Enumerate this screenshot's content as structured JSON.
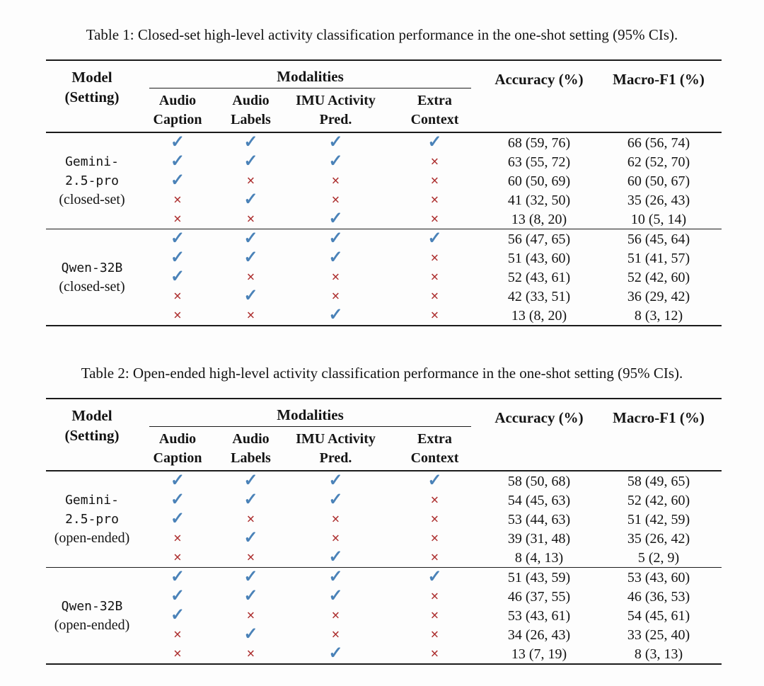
{
  "colors": {
    "background": "#fdfdfd",
    "text": "#141414",
    "rule_black": "#1b1b1b",
    "check_blue": "#4a82b8",
    "cross_red": "#ad3030"
  },
  "glyphs": {
    "check": "✓",
    "cross": "×"
  },
  "tables": [
    {
      "caption": "Table 1: Closed-set high-level activity classification performance in the one-shot setting (95% CIs).",
      "header": {
        "model_line1": "Model",
        "model_line2": "(Setting)",
        "modalities_label": "Modalities",
        "modality_columns": [
          {
            "line1": "Audio",
            "line2": "Caption"
          },
          {
            "line1": "Audio",
            "line2": "Labels"
          },
          {
            "line1": "IMU Activity",
            "line2": "Pred."
          },
          {
            "line1": "Extra",
            "line2": "Context"
          }
        ],
        "accuracy_label": "Accuracy (%)",
        "macro_f1_label": "Macro-F1 (%)"
      },
      "groups": [
        {
          "model_lines": [
            "Gemini-",
            "2.5-pro"
          ],
          "setting_line": "(closed-set)",
          "rows": [
            {
              "audio_caption": true,
              "audio_labels": true,
              "imu_activity_pred": true,
              "extra_context": true,
              "accuracy": "68 (59, 76)",
              "macro_f1": "66 (56, 74)"
            },
            {
              "audio_caption": true,
              "audio_labels": true,
              "imu_activity_pred": true,
              "extra_context": false,
              "accuracy": "63 (55, 72)",
              "macro_f1": "62 (52, 70)"
            },
            {
              "audio_caption": true,
              "audio_labels": false,
              "imu_activity_pred": false,
              "extra_context": false,
              "accuracy": "60 (50, 69)",
              "macro_f1": "60 (50, 67)"
            },
            {
              "audio_caption": false,
              "audio_labels": true,
              "imu_activity_pred": false,
              "extra_context": false,
              "accuracy": "41 (32, 50)",
              "macro_f1": "35 (26, 43)"
            },
            {
              "audio_caption": false,
              "audio_labels": false,
              "imu_activity_pred": true,
              "extra_context": false,
              "accuracy": "13 (8, 20)",
              "macro_f1": "10 (5, 14)"
            }
          ]
        },
        {
          "model_lines": [
            "Qwen-32B"
          ],
          "setting_line": "(closed-set)",
          "rows": [
            {
              "audio_caption": true,
              "audio_labels": true,
              "imu_activity_pred": true,
              "extra_context": true,
              "accuracy": "56 (47, 65)",
              "macro_f1": "56 (45, 64)"
            },
            {
              "audio_caption": true,
              "audio_labels": true,
              "imu_activity_pred": true,
              "extra_context": false,
              "accuracy": "51 (43, 60)",
              "macro_f1": "51 (41, 57)"
            },
            {
              "audio_caption": true,
              "audio_labels": false,
              "imu_activity_pred": false,
              "extra_context": false,
              "accuracy": "52 (43, 61)",
              "macro_f1": "52 (42, 60)"
            },
            {
              "audio_caption": false,
              "audio_labels": true,
              "imu_activity_pred": false,
              "extra_context": false,
              "accuracy": "42 (33, 51)",
              "macro_f1": "36 (29, 42)"
            },
            {
              "audio_caption": false,
              "audio_labels": false,
              "imu_activity_pred": true,
              "extra_context": false,
              "accuracy": "13 (8, 20)",
              "macro_f1": "8 (3, 12)"
            }
          ]
        }
      ]
    },
    {
      "caption": "Table 2: Open-ended high-level activity classification performance in the one-shot setting (95% CIs).",
      "header": {
        "model_line1": "Model",
        "model_line2": "(Setting)",
        "modalities_label": "Modalities",
        "modality_columns": [
          {
            "line1": "Audio",
            "line2": "Caption"
          },
          {
            "line1": "Audio",
            "line2": "Labels"
          },
          {
            "line1": "IMU Activity",
            "line2": "Pred."
          },
          {
            "line1": "Extra",
            "line2": "Context"
          }
        ],
        "accuracy_label": "Accuracy (%)",
        "macro_f1_label": "Macro-F1 (%)"
      },
      "groups": [
        {
          "model_lines": [
            "Gemini-",
            "2.5-pro"
          ],
          "setting_line": "(open-ended)",
          "rows": [
            {
              "audio_caption": true,
              "audio_labels": true,
              "imu_activity_pred": true,
              "extra_context": true,
              "accuracy": "58 (50, 68)",
              "macro_f1": "58 (49, 65)"
            },
            {
              "audio_caption": true,
              "audio_labels": true,
              "imu_activity_pred": true,
              "extra_context": false,
              "accuracy": "54 (45, 63)",
              "macro_f1": "52 (42, 60)"
            },
            {
              "audio_caption": true,
              "audio_labels": false,
              "imu_activity_pred": false,
              "extra_context": false,
              "accuracy": "53 (44, 63)",
              "macro_f1": "51 (42, 59)"
            },
            {
              "audio_caption": false,
              "audio_labels": true,
              "imu_activity_pred": false,
              "extra_context": false,
              "accuracy": "39 (31, 48)",
              "macro_f1": "35 (26, 42)"
            },
            {
              "audio_caption": false,
              "audio_labels": false,
              "imu_activity_pred": true,
              "extra_context": false,
              "accuracy": "8 (4, 13)",
              "macro_f1": "5 (2, 9)"
            }
          ]
        },
        {
          "model_lines": [
            "Qwen-32B"
          ],
          "setting_line": "(open-ended)",
          "rows": [
            {
              "audio_caption": true,
              "audio_labels": true,
              "imu_activity_pred": true,
              "extra_context": true,
              "accuracy": "51 (43, 59)",
              "macro_f1": "53 (43, 60)"
            },
            {
              "audio_caption": true,
              "audio_labels": true,
              "imu_activity_pred": true,
              "extra_context": false,
              "accuracy": "46 (37, 55)",
              "macro_f1": "46 (36, 53)"
            },
            {
              "audio_caption": true,
              "audio_labels": false,
              "imu_activity_pred": false,
              "extra_context": false,
              "accuracy": "53 (43, 61)",
              "macro_f1": "54 (45, 61)"
            },
            {
              "audio_caption": false,
              "audio_labels": true,
              "imu_activity_pred": false,
              "extra_context": false,
              "accuracy": "34 (26, 43)",
              "macro_f1": "33 (25, 40)"
            },
            {
              "audio_caption": false,
              "audio_labels": false,
              "imu_activity_pred": true,
              "extra_context": false,
              "accuracy": "13 (7, 19)",
              "macro_f1": "8 (3, 13)"
            }
          ]
        }
      ]
    }
  ]
}
